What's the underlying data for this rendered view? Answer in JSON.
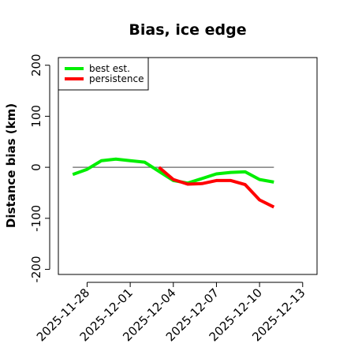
{
  "chart_data": {
    "type": "line",
    "title": "Bias, ice edge",
    "xlabel": "",
    "ylabel": "Distance bias (km)",
    "ylim": [
      -210,
      215
    ],
    "xlim": [
      "2025-11-26",
      "2025-12-14"
    ],
    "y_ticks": [
      -200,
      -100,
      0,
      100,
      200
    ],
    "x_ticks": [
      "2025-11-28",
      "2025-12-01",
      "2025-12-04",
      "2025-12-07",
      "2025-12-10",
      "2025-12-13"
    ],
    "grid": false,
    "legend_position": "top-left",
    "reference_line": {
      "y": 0,
      "color": "#666666"
    },
    "series": [
      {
        "name": "best est.",
        "color": "#00ee00",
        "points": [
          {
            "x": "2025-11-27",
            "y": -14
          },
          {
            "x": "2025-11-28",
            "y": -4
          },
          {
            "x": "2025-11-29",
            "y": 13
          },
          {
            "x": "2025-11-30",
            "y": 16
          },
          {
            "x": "2025-12-01",
            "y": 13
          },
          {
            "x": "2025-12-02",
            "y": 10
          },
          {
            "x": "2025-12-03",
            "y": -8
          },
          {
            "x": "2025-12-04",
            "y": -26
          },
          {
            "x": "2025-12-05",
            "y": -31
          },
          {
            "x": "2025-12-06",
            "y": -22
          },
          {
            "x": "2025-12-07",
            "y": -13
          },
          {
            "x": "2025-12-08",
            "y": -10
          },
          {
            "x": "2025-12-09",
            "y": -9
          },
          {
            "x": "2025-12-10",
            "y": -24
          },
          {
            "x": "2025-12-11",
            "y": -29
          }
        ]
      },
      {
        "name": "persistence",
        "color": "#ff0000",
        "points": [
          {
            "x": "2025-12-03",
            "y": 0
          },
          {
            "x": "2025-12-04",
            "y": -24
          },
          {
            "x": "2025-12-05",
            "y": -33
          },
          {
            "x": "2025-12-06",
            "y": -32
          },
          {
            "x": "2025-12-07",
            "y": -26
          },
          {
            "x": "2025-12-08",
            "y": -26
          },
          {
            "x": "2025-12-09",
            "y": -34
          },
          {
            "x": "2025-12-10",
            "y": -64
          },
          {
            "x": "2025-12-11",
            "y": -78
          }
        ]
      }
    ]
  }
}
